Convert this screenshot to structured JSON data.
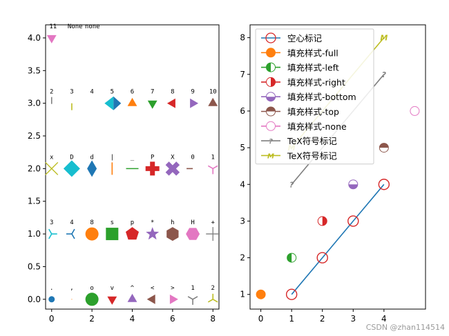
{
  "chart_data": [
    {
      "type": "scatter",
      "xlim": [
        -0.3,
        8.3
      ],
      "ylim": [
        -0.15,
        4.2
      ],
      "xticks": [
        0,
        2,
        4,
        6,
        8
      ],
      "yticks": [
        0.0,
        0.5,
        1.0,
        1.5,
        2.0,
        2.5,
        3.0,
        3.5,
        4.0
      ],
      "xtick_labels": [
        "0",
        "2",
        "4",
        "6",
        "8"
      ],
      "ytick_labels": [
        "0.0",
        "0.5",
        "1.0",
        "1.5",
        "2.0",
        "2.5",
        "3.0",
        "3.5",
        "4.0"
      ],
      "grid": false,
      "markers": [
        {
          "x": 0,
          "y": 0,
          "m": ".",
          "label": ".",
          "color": "#1f77b4"
        },
        {
          "x": 1,
          "y": 0,
          "m": ",",
          "label": ",",
          "color": "#ff7f0e"
        },
        {
          "x": 2,
          "y": 0,
          "m": "o",
          "label": "o",
          "color": "#2ca02c"
        },
        {
          "x": 3,
          "y": 0,
          "m": "v",
          "label": "v",
          "color": "#d62728"
        },
        {
          "x": 4,
          "y": 0,
          "m": "^",
          "label": "^",
          "color": "#9467bd"
        },
        {
          "x": 5,
          "y": 0,
          "m": "<",
          "label": "<",
          "color": "#8c564b"
        },
        {
          "x": 6,
          "y": 0,
          "m": ">",
          "label": ">",
          "color": "#e377c2"
        },
        {
          "x": 7,
          "y": 0,
          "m": "1",
          "label": "1",
          "color": "#7f7f7f"
        },
        {
          "x": 8,
          "y": 0,
          "m": "2",
          "label": "2",
          "color": "#bcbd22"
        },
        {
          "x": 0,
          "y": 1,
          "m": "3",
          "label": "3",
          "color": "#17becf"
        },
        {
          "x": 1,
          "y": 1,
          "m": "4",
          "label": "4",
          "color": "#1f77b4"
        },
        {
          "x": 2,
          "y": 1,
          "m": "8",
          "label": "8",
          "color": "#ff7f0e"
        },
        {
          "x": 3,
          "y": 1,
          "m": "s",
          "label": "s",
          "color": "#2ca02c"
        },
        {
          "x": 4,
          "y": 1,
          "m": "p",
          "label": "p",
          "color": "#d62728"
        },
        {
          "x": 5,
          "y": 1,
          "m": "*",
          "label": "*",
          "color": "#9467bd"
        },
        {
          "x": 6,
          "y": 1,
          "m": "h",
          "label": "h",
          "color": "#8c564b"
        },
        {
          "x": 7,
          "y": 1,
          "m": "H",
          "label": "H",
          "color": "#e377c2"
        },
        {
          "x": 8,
          "y": 1,
          "m": "+",
          "label": "+",
          "color": "#7f7f7f"
        },
        {
          "x": 0,
          "y": 2,
          "m": "x",
          "label": "x",
          "color": "#bcbd22"
        },
        {
          "x": 1,
          "y": 2,
          "m": "D",
          "label": "D",
          "color": "#17becf"
        },
        {
          "x": 2,
          "y": 2,
          "m": "d",
          "label": "d",
          "color": "#1f77b4"
        },
        {
          "x": 3,
          "y": 2,
          "m": "|",
          "label": "|",
          "color": "#ff7f0e"
        },
        {
          "x": 4,
          "y": 2,
          "m": "_",
          "label": "_",
          "color": "#2ca02c"
        },
        {
          "x": 5,
          "y": 2,
          "m": "P",
          "label": "P",
          "color": "#d62728"
        },
        {
          "x": 6,
          "y": 2,
          "m": "X",
          "label": "X",
          "color": "#9467bd"
        },
        {
          "x": 7,
          "y": 2,
          "m": "0",
          "label": "0",
          "color": "#8c564b"
        },
        {
          "x": 8,
          "y": 2,
          "m": "1",
          "label": "1",
          "color": "#e377c2"
        },
        {
          "x": 0,
          "y": 3,
          "m": "2",
          "label": "2",
          "color": "#7f7f7f"
        },
        {
          "x": 1,
          "y": 3,
          "m": "3",
          "label": "3",
          "color": "#bcbd22"
        },
        {
          "x": 2,
          "y": 3,
          "m": "4",
          "label": "4",
          "color": "#17becf"
        },
        {
          "x": 3,
          "y": 3,
          "m": "5",
          "label": "5",
          "color": "#1f77b4"
        },
        {
          "x": 4,
          "y": 3,
          "m": "6",
          "label": "6",
          "color": "#ff7f0e"
        },
        {
          "x": 5,
          "y": 3,
          "m": "7",
          "label": "7",
          "color": "#2ca02c"
        },
        {
          "x": 6,
          "y": 3,
          "m": "8",
          "label": "8",
          "color": "#d62728"
        },
        {
          "x": 7,
          "y": 3,
          "m": "9",
          "label": "9",
          "color": "#9467bd"
        },
        {
          "x": 8,
          "y": 3,
          "m": "10",
          "label": "10",
          "color": "#8c564b"
        },
        {
          "x": 0,
          "y": 4,
          "m": "11",
          "label": "11",
          "color": "#e377c2"
        },
        {
          "x": 1,
          "y": 4,
          "m": "None",
          "label": "None",
          "color": "#7f7f7f"
        },
        {
          "x": 2,
          "y": 4,
          "m": "none",
          "label": "none",
          "color": "#bcbd22"
        }
      ]
    },
    {
      "type": "line",
      "xlim": [
        -0.35,
        5.35
      ],
      "ylim": [
        0.6,
        8.35
      ],
      "xticks": [
        0,
        1,
        2,
        3,
        4
      ],
      "yticks": [
        1,
        2,
        3,
        4,
        5,
        6,
        7,
        8
      ],
      "xtick_labels": [
        "0",
        "1",
        "2",
        "3",
        "4"
      ],
      "ytick_labels": [
        "1",
        "2",
        "3",
        "4",
        "5",
        "6",
        "7",
        "8"
      ],
      "grid": false,
      "legend_position": "top-left",
      "series": [
        {
          "name": "空心标记",
          "color": "#1f77b4",
          "x": [
            1,
            2,
            3,
            4
          ],
          "y": [
            1,
            2,
            3,
            4
          ],
          "line": true,
          "marker": "hollow-circle",
          "marker_edge": "#d62728"
        },
        {
          "name": "填充样式-full",
          "color": "#ff7f0e",
          "x": [
            0
          ],
          "y": [
            1
          ],
          "line": false,
          "marker": "full"
        },
        {
          "name": "填充样式-left",
          "color": "#2ca02c",
          "x": [
            1
          ],
          "y": [
            2
          ],
          "line": false,
          "marker": "left"
        },
        {
          "name": "填充样式-right",
          "color": "#d62728",
          "x": [
            2
          ],
          "y": [
            3
          ],
          "line": false,
          "marker": "right"
        },
        {
          "name": "填充样式-bottom",
          "color": "#9467bd",
          "x": [
            3
          ],
          "y": [
            4
          ],
          "line": false,
          "marker": "bottom"
        },
        {
          "name": "填充样式-top",
          "color": "#8c564b",
          "x": [
            4
          ],
          "y": [
            5
          ],
          "line": false,
          "marker": "top"
        },
        {
          "name": "填充样式-none",
          "color": "#e377c2",
          "x": [
            5
          ],
          "y": [
            6
          ],
          "line": false,
          "marker": "none"
        },
        {
          "name": "TeX符号标记",
          "color": "#7f7f7f",
          "x": [
            1,
            4
          ],
          "y": [
            4,
            7
          ],
          "line": true,
          "marker": "?"
        },
        {
          "name": "TeX符号标记",
          "color": "#bcbd22",
          "x": [
            1,
            4
          ],
          "y": [
            5,
            8
          ],
          "line": true,
          "marker": "M"
        }
      ]
    }
  ],
  "watermark": "CSDN @zhan114514"
}
